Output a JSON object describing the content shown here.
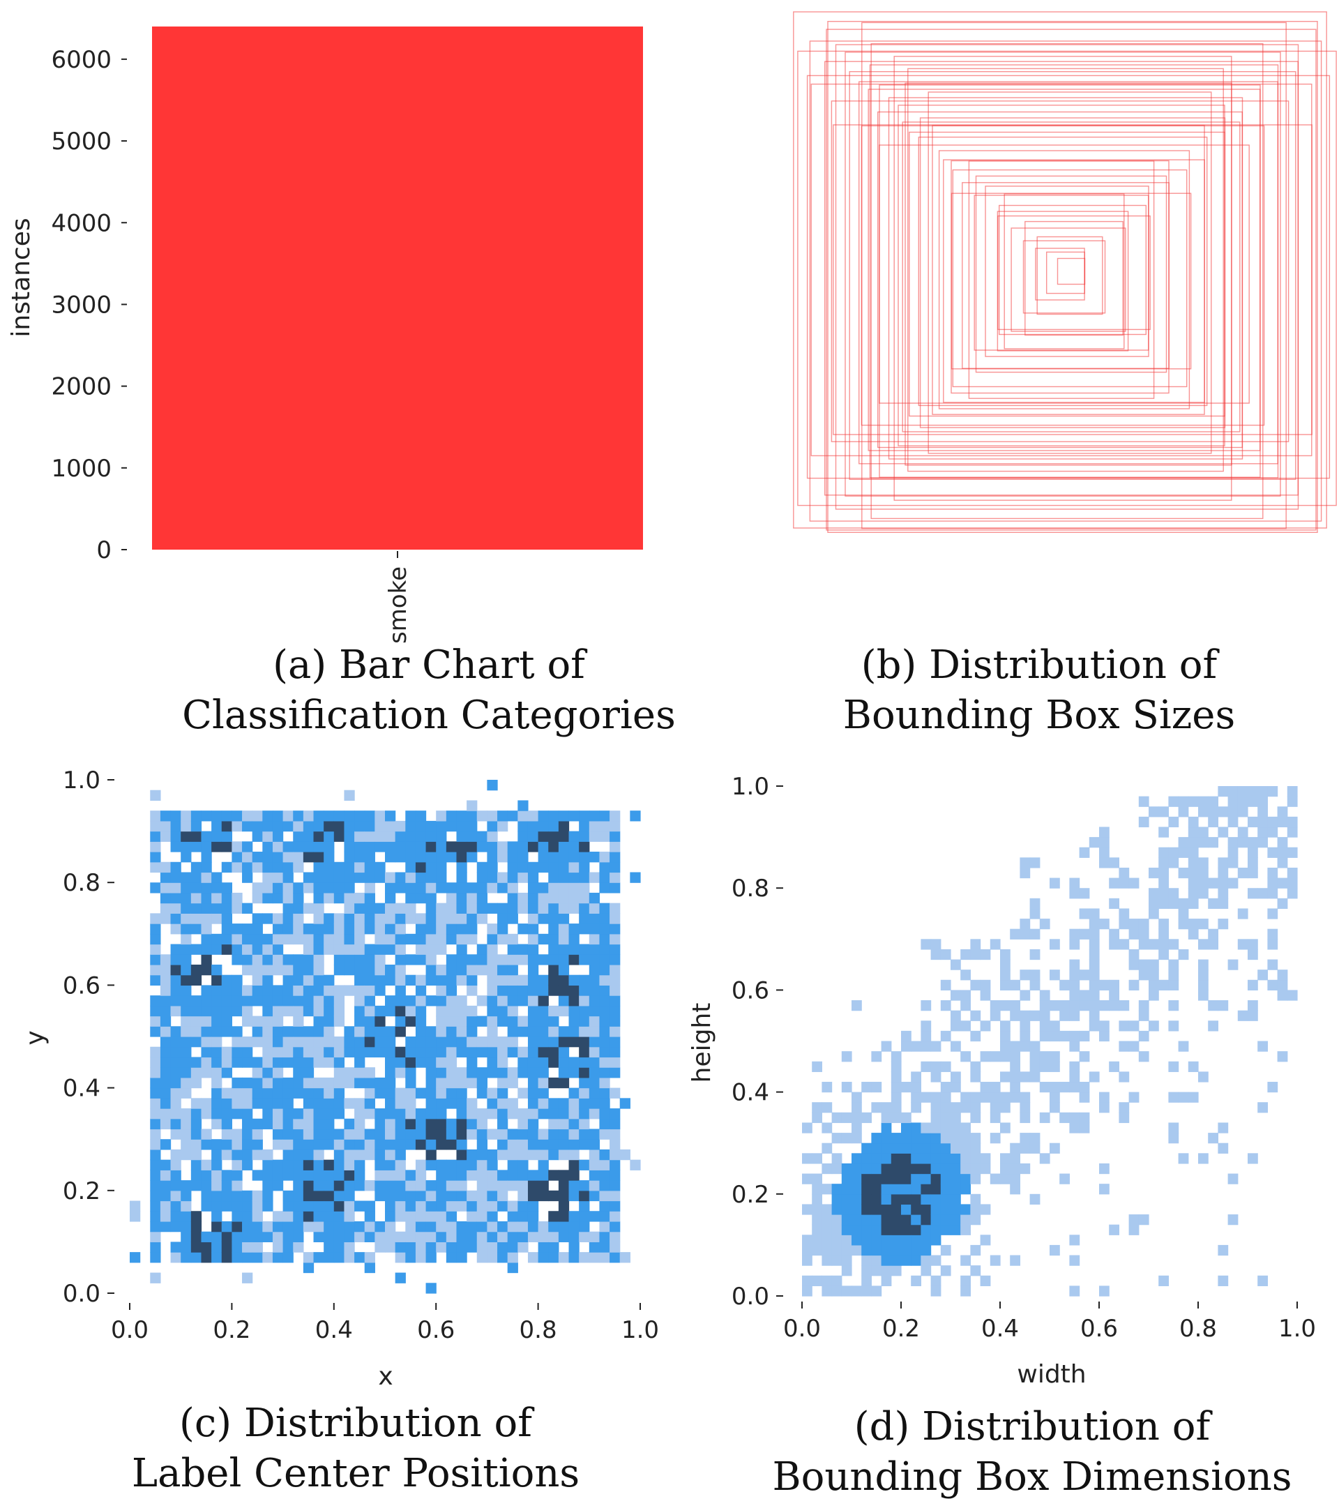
{
  "colors": {
    "bar_red": "#ff3636",
    "box_red": "#f23a3a",
    "heat_light": "#a9c9ef",
    "heat_mid": "#3b9bea",
    "heat_dark": "#2e4a6a",
    "text": "#222222"
  },
  "captions": {
    "a": [
      "(a) Bar Chart of",
      "Classification Categories"
    ],
    "b": [
      "(b) Distribution of",
      "Bounding Box Sizes"
    ],
    "c": [
      "(c) Distribution of",
      "Label Center Positions"
    ],
    "d": [
      "(d) Distribution of",
      "Bounding Box Dimensions"
    ]
  },
  "chart_data": [
    {
      "id": "a",
      "type": "bar",
      "title": "(a) Bar Chart of Classification Categories",
      "categories": [
        "smoke"
      ],
      "values": [
        6400
      ],
      "xlabel": "",
      "ylabel": "instances",
      "ylim": [
        0,
        6400
      ],
      "yticks": [
        0,
        1000,
        2000,
        3000,
        4000,
        5000,
        6000
      ],
      "ytick_labels": [
        "0",
        "1000",
        "2000",
        "3000",
        "4000",
        "5000",
        "6000"
      ],
      "xtick_labels": [
        "smoke"
      ],
      "grid": false
    },
    {
      "id": "b",
      "type": "scatter",
      "title": "(b) Distribution of Bounding Box Sizes",
      "description_of_encoding": "overlaid centered bounding-box outlines, one per instance (width, height normalized 0-1)",
      "boxes_wh": [
        [
          0.98,
          1.0
        ],
        [
          0.94,
          0.93
        ],
        [
          0.9,
          0.97
        ],
        [
          0.87,
          0.84
        ],
        [
          0.85,
          0.9
        ],
        [
          0.82,
          0.79
        ],
        [
          0.8,
          0.86
        ],
        [
          0.77,
          0.74
        ],
        [
          0.75,
          0.8
        ],
        [
          0.72,
          0.7
        ],
        [
          0.7,
          0.76
        ],
        [
          0.67,
          0.65
        ],
        [
          0.65,
          0.7
        ],
        [
          0.62,
          0.6
        ],
        [
          0.6,
          0.66
        ],
        [
          0.58,
          0.55
        ],
        [
          0.56,
          0.6
        ],
        [
          0.53,
          0.52
        ],
        [
          0.5,
          0.56
        ],
        [
          0.48,
          0.47
        ],
        [
          0.46,
          0.5
        ],
        [
          0.43,
          0.42
        ],
        [
          0.4,
          0.45
        ],
        [
          0.38,
          0.36
        ],
        [
          0.35,
          0.38
        ],
        [
          0.32,
          0.3
        ],
        [
          0.3,
          0.33
        ],
        [
          0.27,
          0.25
        ],
        [
          0.24,
          0.27
        ],
        [
          0.21,
          0.2
        ],
        [
          0.18,
          0.22
        ],
        [
          0.15,
          0.14
        ],
        [
          0.12,
          0.15
        ],
        [
          0.09,
          0.1
        ],
        [
          0.07,
          0.08
        ],
        [
          0.05,
          0.05
        ],
        [
          0.92,
          0.72
        ],
        [
          0.72,
          0.92
        ],
        [
          0.88,
          0.6
        ],
        [
          0.62,
          0.86
        ],
        [
          0.96,
          0.78
        ],
        [
          0.78,
          0.98
        ],
        [
          0.68,
          0.5
        ],
        [
          0.52,
          0.7
        ],
        [
          0.84,
          0.66
        ],
        [
          0.58,
          0.78
        ],
        [
          0.44,
          0.34
        ],
        [
          0.34,
          0.46
        ],
        [
          0.99,
          0.88
        ],
        [
          0.9,
          0.99
        ],
        [
          0.74,
          0.58
        ],
        [
          0.6,
          0.74
        ],
        [
          0.28,
          0.22
        ],
        [
          0.22,
          0.3
        ]
      ],
      "xlim": [
        0,
        1
      ],
      "ylim": [
        0,
        1
      ],
      "axes_visible": false
    },
    {
      "id": "c",
      "type": "heatmap",
      "title": "(c) Distribution of Label Center Positions",
      "xlabel": "x",
      "ylabel": "y",
      "xlim": [
        0,
        1
      ],
      "ylim": [
        0,
        1
      ],
      "xticks": [
        0.0,
        0.2,
        0.4,
        0.6,
        0.8,
        1.0
      ],
      "xtick_labels": [
        "0.0",
        "0.2",
        "0.4",
        "0.6",
        "0.8",
        "1.0"
      ],
      "yticks": [
        0.0,
        0.2,
        0.4,
        0.6,
        0.8,
        1.0
      ],
      "ytick_labels": [
        "0.0",
        "0.2",
        "0.4",
        "0.6",
        "0.8",
        "1.0"
      ],
      "bins": 50,
      "distribution": "roughly uniform over x 0.03-0.97, y 0.05-0.95; dense clusters near (0.15,0.87),(0.38,0.87),(0.82,0.88),(0.15,0.62),(0.38,0.2),(0.85,0.2),(0.85,0.45)",
      "dense_regions": [
        {
          "x": 0.15,
          "y": 0.87
        },
        {
          "x": 0.38,
          "y": 0.87
        },
        {
          "x": 0.63,
          "y": 0.86
        },
        {
          "x": 0.82,
          "y": 0.88
        },
        {
          "x": 0.15,
          "y": 0.62
        },
        {
          "x": 0.85,
          "y": 0.62
        },
        {
          "x": 0.52,
          "y": 0.5
        },
        {
          "x": 0.85,
          "y": 0.45
        },
        {
          "x": 0.38,
          "y": 0.2
        },
        {
          "x": 0.15,
          "y": 0.12
        },
        {
          "x": 0.6,
          "y": 0.3
        },
        {
          "x": 0.85,
          "y": 0.2
        }
      ],
      "grid": false
    },
    {
      "id": "d",
      "type": "heatmap",
      "title": "(d) Distribution of Bounding Box Dimensions",
      "xlabel": "width",
      "ylabel": "height",
      "xlim": [
        0,
        1
      ],
      "ylim": [
        0,
        1
      ],
      "xticks": [
        0.0,
        0.2,
        0.4,
        0.6,
        0.8,
        1.0
      ],
      "xtick_labels": [
        "0.0",
        "0.2",
        "0.4",
        "0.6",
        "0.8",
        "1.0"
      ],
      "yticks": [
        0.0,
        0.2,
        0.4,
        0.6,
        0.8,
        1.0
      ],
      "ytick_labels": [
        "0.0",
        "0.2",
        "0.4",
        "0.6",
        "0.8",
        "1.0"
      ],
      "bins": 50,
      "distribution": "positively correlated; densest near width 0.2, height 0.2; sparse upper-right spread to (1.0, 1.0); empty upper-left triangle",
      "peak": {
        "width": 0.2,
        "height": 0.2
      },
      "grid": false
    }
  ]
}
